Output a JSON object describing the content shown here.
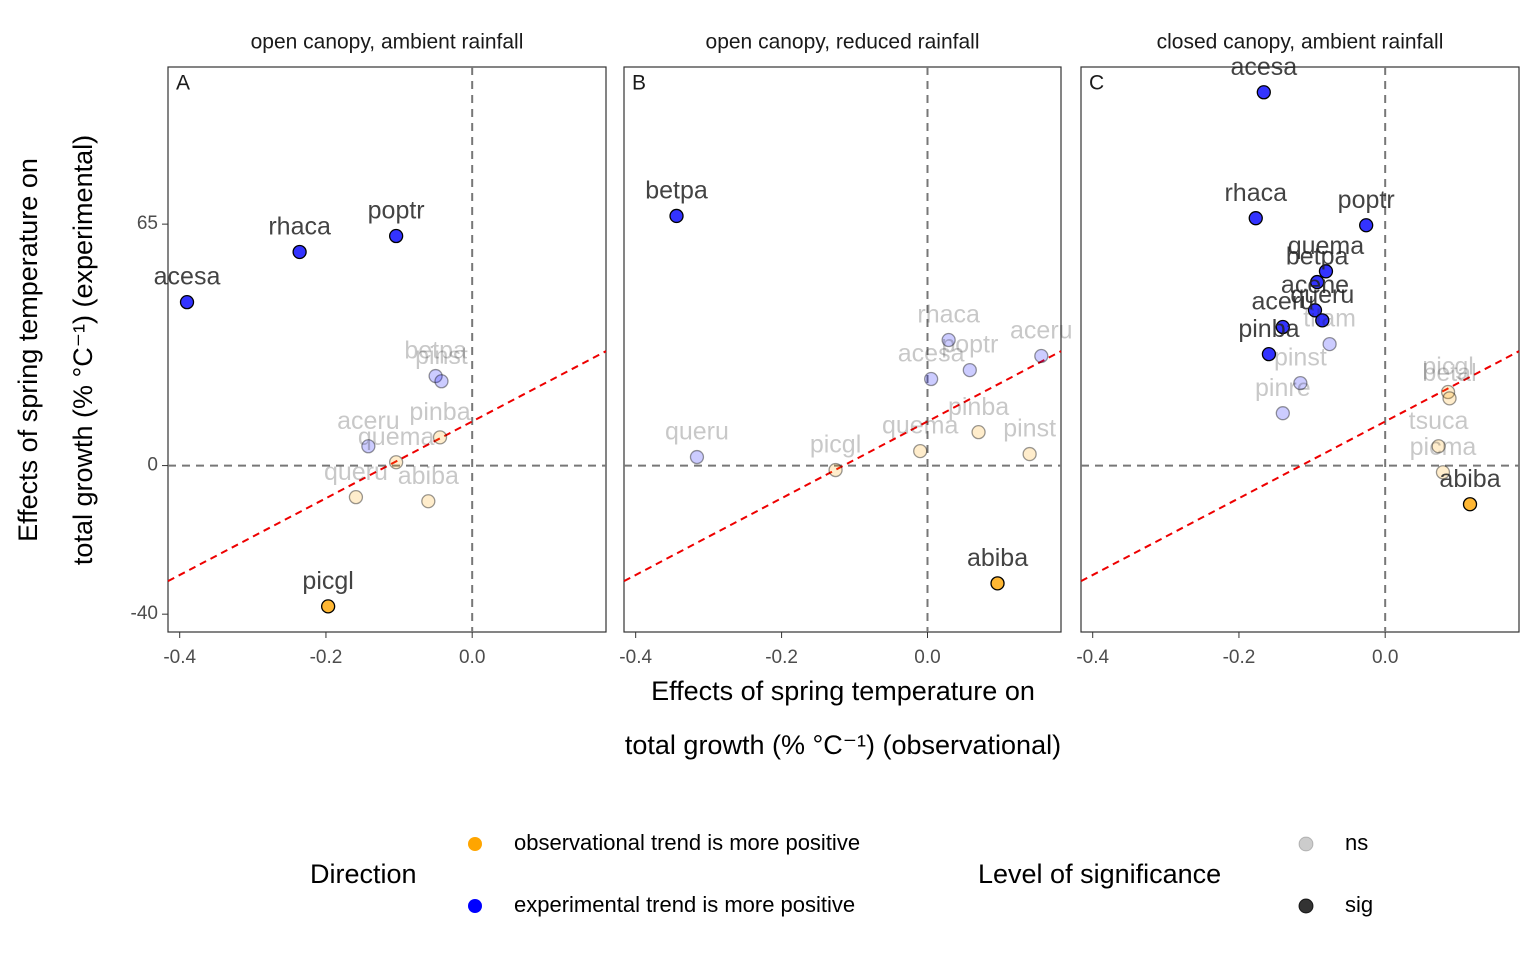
{
  "chart_data": [
    {
      "type": "scatter",
      "title": "open canopy, ambient rainfall",
      "panel_label": "A",
      "xlim": [
        -0.416,
        0.183
      ],
      "xticks": [
        -0.4,
        -0.2,
        {
          "value": 0,
          "label": "0.0"
        }
      ],
      "ylim": [
        -44.8,
        107.3
      ],
      "yticks": [
        65,
        0,
        -40
      ],
      "labels": [
        "acesa",
        "rhaca",
        "poptr",
        "betpa",
        "pinst",
        "aceru",
        "pinba",
        "quema",
        "queru",
        "abiba",
        "picgl"
      ],
      "x": [
        -0.39,
        -0.236,
        -0.104,
        -0.05,
        -0.042,
        -0.142,
        -0.044,
        -0.104,
        -0.159,
        -0.06,
        -0.197
      ],
      "y": [
        44.0,
        57.5,
        61.8,
        24.1,
        22.7,
        5.2,
        7.6,
        0.9,
        -8.5,
        -9.6,
        -37.9
      ],
      "direction": [
        1,
        1,
        1,
        1,
        1,
        1,
        0,
        0,
        0,
        0,
        0
      ],
      "significance": [
        1,
        1,
        1,
        0,
        0,
        0,
        0,
        0,
        0,
        0,
        1
      ]
    },
    {
      "type": "scatter",
      "title": "open canopy, reduced rainfall",
      "panel_label": "B",
      "xlim": [
        -0.416,
        0.183
      ],
      "xticks": [
        -0.4,
        -0.2,
        {
          "value": 0,
          "label": "0.0"
        }
      ],
      "labels": [
        "betpa",
        "queru",
        "rhaca",
        "aceru",
        "acesa",
        "poptr",
        "picgl",
        "quema",
        "pinst",
        "pinba",
        "abiba"
      ],
      "x": [
        -0.344,
        -0.316,
        0.029,
        0.156,
        0.005,
        0.058,
        -0.126,
        -0.01,
        0.14,
        0.07,
        0.096
      ],
      "y": [
        67.2,
        2.3,
        33.8,
        29.5,
        23.3,
        25.7,
        -1.2,
        3.9,
        3.1,
        9.0,
        -31.7
      ],
      "direction": [
        1,
        1,
        1,
        1,
        1,
        1,
        0,
        0,
        0,
        0,
        0
      ],
      "significance": [
        1,
        0,
        0,
        0,
        0,
        0,
        0,
        0,
        0,
        0,
        1
      ]
    },
    {
      "type": "scatter",
      "title": "closed canopy, ambient rainfall",
      "panel_label": "C",
      "xlim": [
        -0.416,
        0.183
      ],
      "xticks": [
        -0.4,
        -0.2,
        {
          "value": 0,
          "label": "0.0"
        }
      ],
      "labels": [
        "acesa",
        "rhaca",
        "poptr",
        "quema",
        "betpa",
        "acene",
        "queru",
        "aceru",
        "pinba",
        "tilam",
        "pinst",
        "pinre",
        "picgl",
        "betal",
        "tsuca",
        "picma",
        "abiba"
      ],
      "x": [
        -0.166,
        -0.177,
        -0.026,
        -0.081,
        -0.093,
        -0.096,
        -0.086,
        -0.14,
        -0.159,
        -0.076,
        -0.116,
        -0.14,
        0.086,
        0.088,
        0.073,
        0.079,
        0.116
      ],
      "y": [
        100.5,
        66.6,
        64.7,
        52.3,
        49.4,
        41.8,
        39.1,
        37.3,
        30.0,
        32.7,
        22.2,
        14.1,
        19.8,
        18.1,
        5.2,
        -1.8,
        -10.4
      ],
      "direction": [
        1,
        1,
        1,
        1,
        1,
        1,
        1,
        1,
        1,
        1,
        1,
        1,
        0,
        0,
        0,
        0,
        0
      ],
      "significance": [
        1,
        1,
        1,
        1,
        1,
        1,
        1,
        1,
        1,
        0,
        0,
        0,
        0,
        0,
        0,
        0,
        1
      ]
    }
  ],
  "x_label": [
    "Effects of  spring temperature on",
    "total growth (% °C⁻¹) (observational)"
  ],
  "y_label": [
    "Effects of  spring temperature on",
    "total growth (% °C⁻¹) (experimental)"
  ],
  "direction_legend": {
    "title": "Direction",
    "entries": [
      {
        "label": "observational trend is more positive",
        "color": "#FFA500"
      },
      {
        "label": "experimental trend is more positive",
        "color": "#0000FF"
      }
    ]
  },
  "significance_legend": {
    "title": "Level of significance",
    "entries": [
      {
        "label": "ns",
        "opacity": 0.2
      },
      {
        "label": "sig",
        "opacity": 0.8
      }
    ]
  }
}
